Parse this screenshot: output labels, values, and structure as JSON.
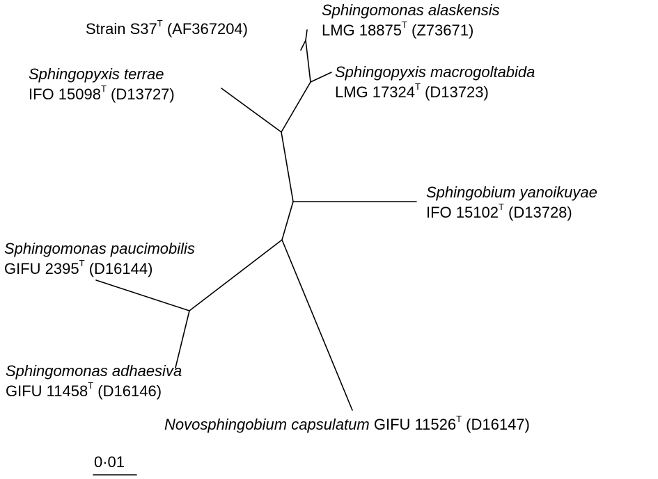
{
  "taxa": [
    {
      "id": "strain-s37",
      "species": "",
      "strain": "Strain S37",
      "superscript": "T",
      "accession": "(AF367204)"
    },
    {
      "id": "sphingomonas-alaskensis",
      "species": "Sphingomonas alaskensis",
      "strain": "LMG 18875",
      "superscript": "T",
      "accession": "(Z73671)"
    },
    {
      "id": "sphingopyxis-macrogoltabida",
      "species": "Sphingopyxis macrogoltabida",
      "strain": "LMG 17324",
      "superscript": "T",
      "accession": "(D13723)"
    },
    {
      "id": "sphingopyxis-terrae",
      "species": "Sphingopyxis terrae",
      "strain": "IFO 15098",
      "superscript": "T",
      "accession": "(D13727)"
    },
    {
      "id": "sphingobium-yanoikuyae",
      "species": "Sphingobium yanoikuyae",
      "strain": "IFO 15102",
      "superscript": "T",
      "accession": "(D13728)"
    },
    {
      "id": "sphingomonas-paucimobilis",
      "species": "Sphingomonas paucimobilis",
      "strain": "GIFU 2395",
      "superscript": "T",
      "accession": "(D16144)"
    },
    {
      "id": "sphingomonas-adhaesiva",
      "species": "Sphingomonas adhaesiva",
      "strain": "GIFU 11458",
      "superscript": "T",
      "accession": "(D16146)"
    },
    {
      "id": "novosphingobium-capsulatum",
      "species": "Novosphingobium capsulatum",
      "strain": "GIFU 11526",
      "superscript": "T",
      "accession": "(D16147)"
    }
  ],
  "scale_bar": {
    "label": "0·01",
    "value": 0.01
  }
}
